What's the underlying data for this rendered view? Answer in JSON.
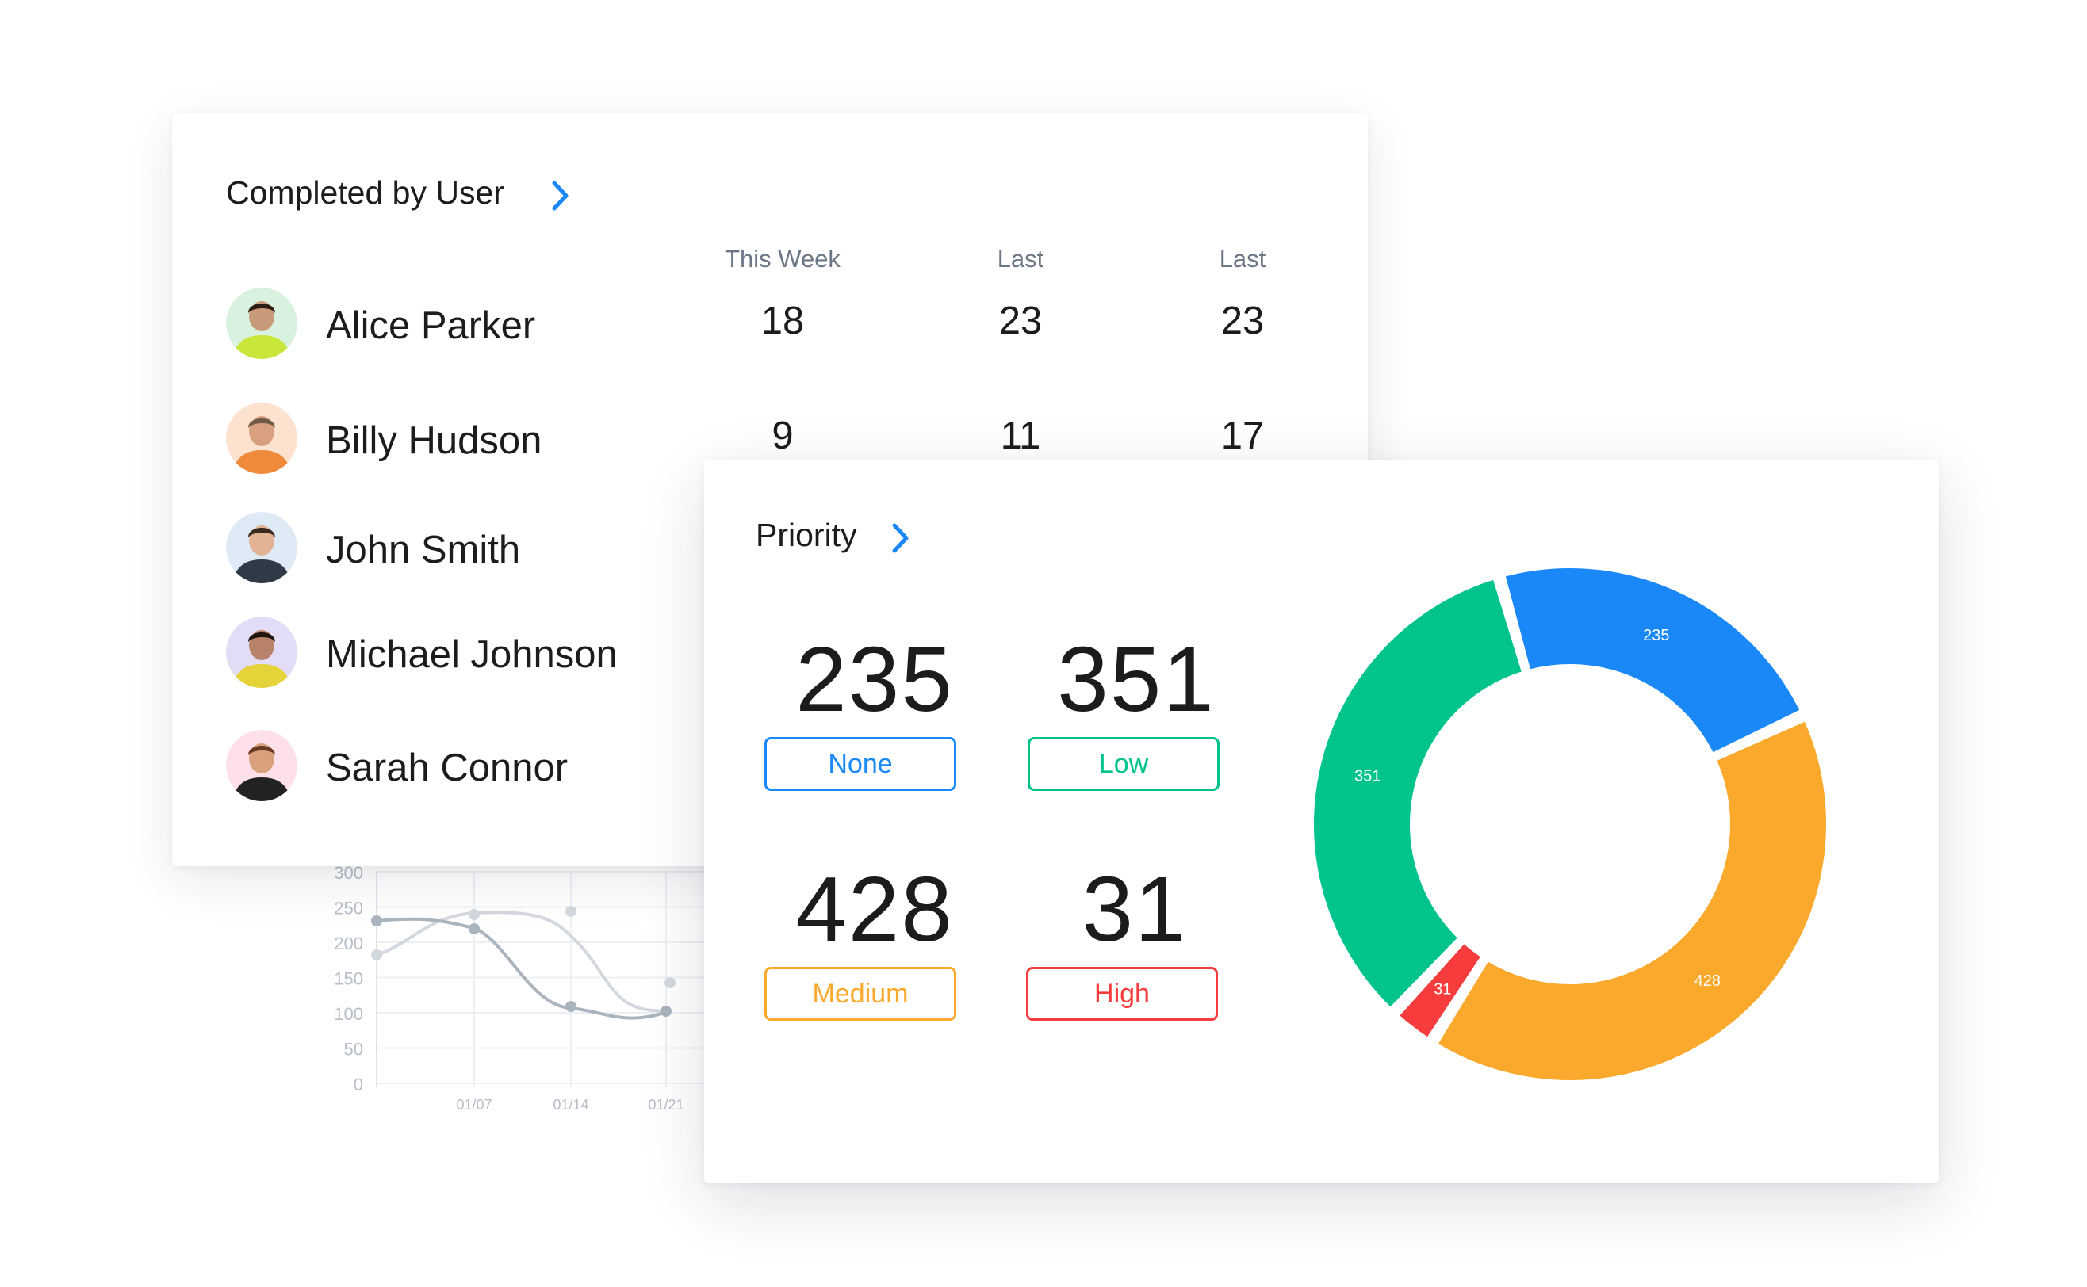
{
  "users_card": {
    "title": "Completed by User",
    "columns": [
      "This Week",
      "Last",
      "Last"
    ],
    "users": [
      {
        "name": "Alice Parker",
        "values": [
          "18",
          "23",
          "23"
        ],
        "avatar_bg": "#d9f2df",
        "shirt": "#c9e63b",
        "skin": "#c99a7a",
        "hair": "#2b1d14"
      },
      {
        "name": "Billy Hudson",
        "values": [
          "9",
          "11",
          "17"
        ],
        "avatar_bg": "#fde2cf",
        "shirt": "#f08a3b",
        "skin": "#d8a07e",
        "hair": "#6f5a48"
      },
      {
        "name": "John Smith",
        "values": [],
        "avatar_bg": "#dfeaf7",
        "shirt": "#2f3a46",
        "skin": "#e2b394",
        "hair": "#3a2a20"
      },
      {
        "name": "Michael Johnson",
        "values": [],
        "avatar_bg": "#e3dcf6",
        "shirt": "#e6d33a",
        "skin": "#b9826a",
        "hair": "#1e1510"
      },
      {
        "name": "Sarah Connor",
        "values": [],
        "avatar_bg": "#fde0ea",
        "shirt": "#222222",
        "skin": "#d9a07e",
        "hair": "#6a3b22"
      }
    ]
  },
  "background_chart": {
    "y_ticks": [
      "300",
      "250",
      "200",
      "150",
      "100",
      "50",
      "0"
    ],
    "x_ticks": [
      "01/07",
      "01/14",
      "01/21"
    ],
    "color_dark": "#aab4be",
    "color_light": "#d3d8de"
  },
  "priority_card": {
    "title": "Priority",
    "stats": [
      {
        "value": "235",
        "label": "None",
        "color": "#1a88f8"
      },
      {
        "value": "351",
        "label": "Low",
        "color": "#00c48c"
      },
      {
        "value": "428",
        "label": "Medium",
        "color": "#fba92c"
      },
      {
        "value": "31",
        "label": "High",
        "color": "#f63c3c"
      }
    ]
  },
  "chart_data": {
    "type": "pie",
    "categories": [
      "None",
      "Medium",
      "High",
      "Low"
    ],
    "values": [
      235,
      428,
      31,
      351
    ],
    "labels": [
      "235",
      "428",
      "31",
      "351"
    ],
    "colors": [
      "#1a88f8",
      "#fba92c",
      "#f63c3c",
      "#00c48c"
    ],
    "title": ""
  },
  "accent_color": "#1a88f8"
}
